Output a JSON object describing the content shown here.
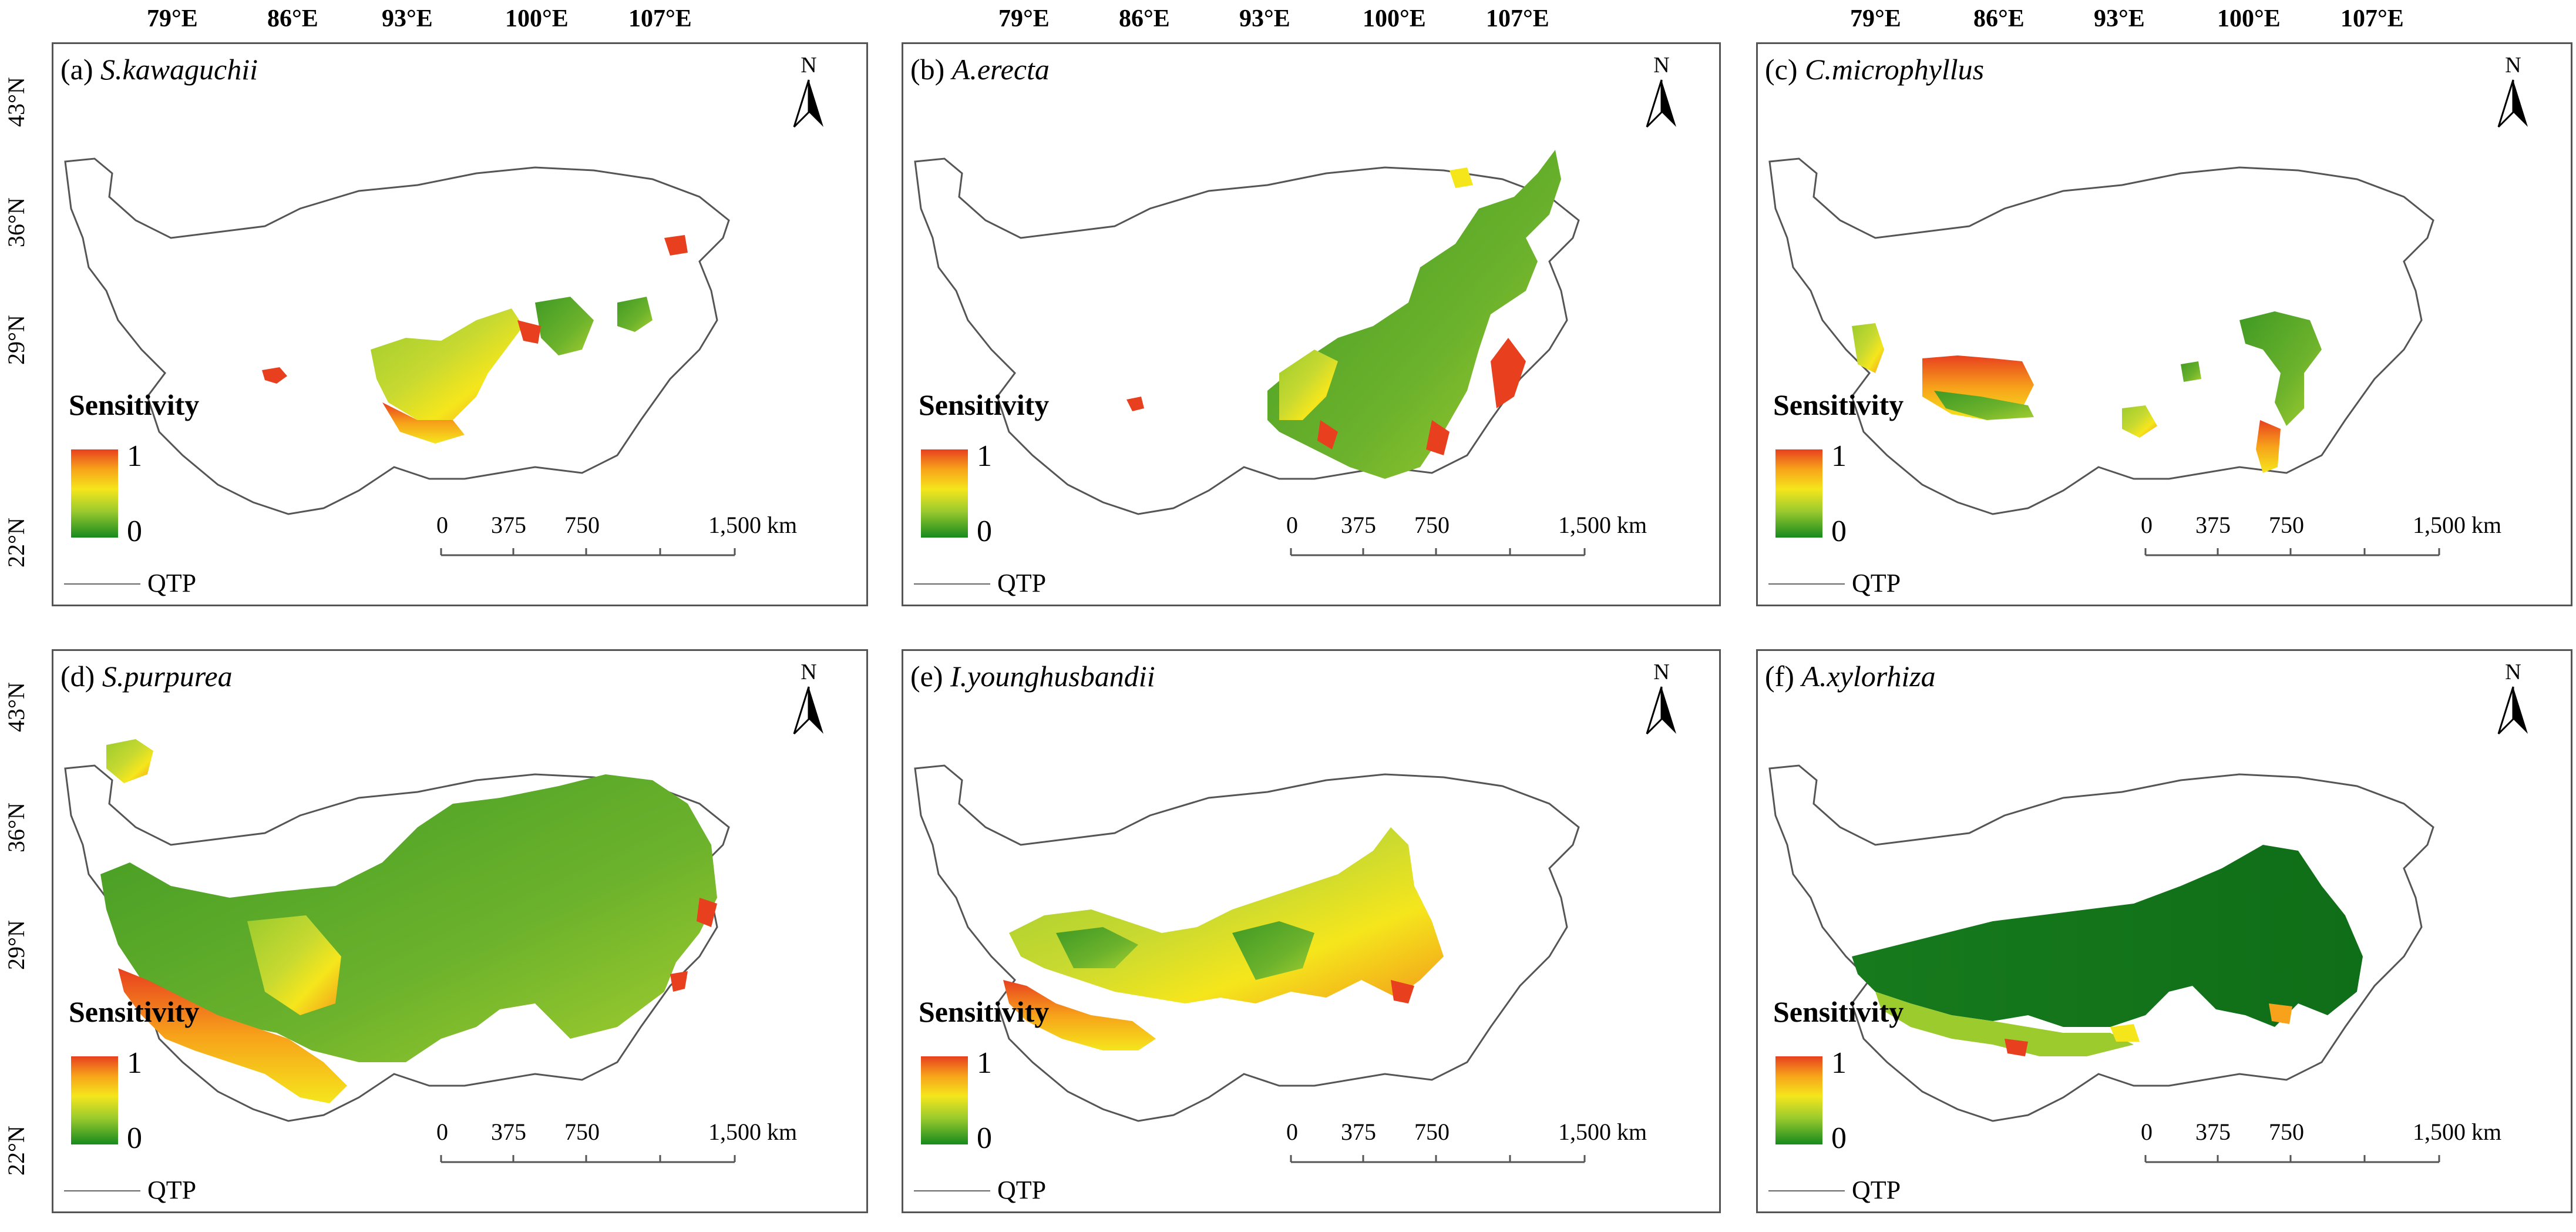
{
  "longitude_labels": [
    "79°E",
    "86°E",
    "93°E",
    "100°E",
    "107°E"
  ],
  "latitude_labels": [
    "43°N",
    "36°N",
    "29°N",
    "22°N"
  ],
  "legend": {
    "title": "Sensitivity",
    "max_label": "1",
    "min_label": "0",
    "boundary_label": "QTP",
    "ramp_colors": [
      "#e8401f",
      "#f7a21a",
      "#f5e61c",
      "#9bcb2d",
      "#168a1e"
    ]
  },
  "north_arrow": {
    "label": "N"
  },
  "scale_bar": {
    "ticks": [
      "0",
      "375",
      "750",
      "1,500 km"
    ]
  },
  "panels": [
    {
      "id": "a",
      "prefix": "(a)",
      "species": "S.kawaguchii"
    },
    {
      "id": "b",
      "prefix": "(b)",
      "species": "A.erecta"
    },
    {
      "id": "c",
      "prefix": "(c)",
      "species": "C.microphyllus"
    },
    {
      "id": "d",
      "prefix": "(d)",
      "species": "S.purpurea"
    },
    {
      "id": "e",
      "prefix": "(e)",
      "species": "I.younghusbandii"
    },
    {
      "id": "f",
      "prefix": "(f)",
      "species": "A.xylorhiza"
    }
  ]
}
